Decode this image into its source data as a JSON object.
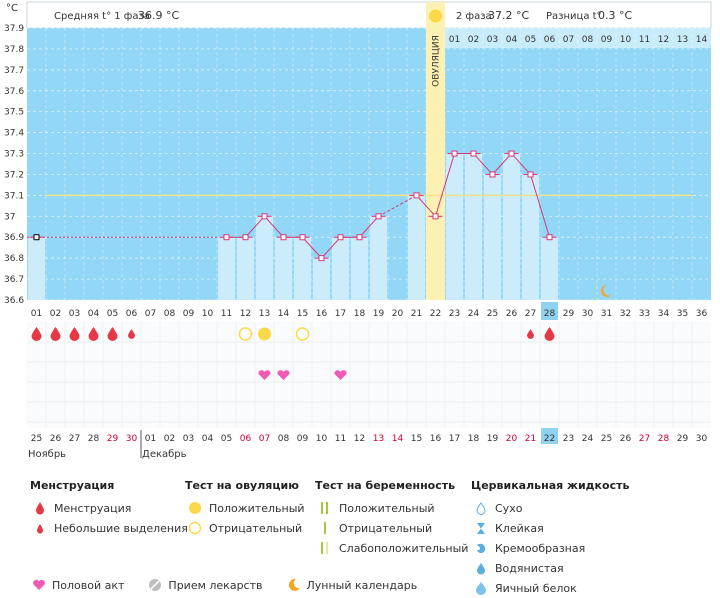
{
  "chart_data": {
    "type": "line",
    "unit_label": "°C",
    "ylim": [
      36.6,
      37.9
    ],
    "yticks": [
      "37.9",
      "37.8",
      "37.7",
      "37.6",
      "37.5",
      "37.4",
      "37.3",
      "37.2",
      "37.1",
      "37",
      "36.9",
      "36.8",
      "36.7",
      "36.6"
    ],
    "cycle_days": [
      "01",
      "02",
      "03",
      "04",
      "05",
      "06",
      "07",
      "08",
      "09",
      "10",
      "11",
      "12",
      "13",
      "14",
      "15",
      "16",
      "17",
      "18",
      "19",
      "20",
      "21",
      "22",
      "23",
      "24",
      "25",
      "26",
      "27",
      "28",
      "29",
      "30",
      "31",
      "32",
      "33",
      "34",
      "35",
      "36"
    ],
    "phase2_days": [
      "01",
      "02",
      "03",
      "04",
      "05",
      "06",
      "07",
      "08",
      "09",
      "10",
      "11",
      "12",
      "13",
      "14"
    ],
    "dates": [
      "25",
      "26",
      "27",
      "28",
      "29",
      "30",
      "01",
      "02",
      "03",
      "04",
      "05",
      "06",
      "07",
      "08",
      "09",
      "10",
      "11",
      "12",
      "13",
      "14",
      "15",
      "16",
      "17",
      "18",
      "19",
      "20",
      "21",
      "22",
      "23",
      "24",
      "25",
      "26",
      "27",
      "28",
      "29",
      "30"
    ],
    "red_date_indices": [
      4,
      5,
      11,
      12,
      18,
      19,
      25,
      26,
      32,
      33
    ],
    "months": [
      {
        "label": "Ноябрь",
        "start": 0
      },
      {
        "label": "Декабрь",
        "start": 6
      }
    ],
    "temperatures": [
      36.9,
      null,
      null,
      null,
      null,
      null,
      null,
      null,
      null,
      null,
      36.9,
      36.9,
      37.0,
      36.9,
      36.9,
      36.8,
      36.9,
      36.9,
      37.0,
      null,
      37.1,
      37.0,
      37.3,
      37.3,
      37.2,
      37.3,
      37.2,
      36.9
    ],
    "dashed_segments": [
      [
        0,
        10
      ],
      [
        18,
        20
      ]
    ],
    "baseline_value": 36.9,
    "coverline_value": 37.1,
    "ovulation_day_index": 21,
    "ovulation_label": "ОВУЛЯЦИЯ",
    "today_index": 27,
    "header": {
      "phase1_label": "Средняя t° 1 фаза",
      "phase1_value": "36.9 °C",
      "phase2_label": "2 фаза",
      "phase2_value": "37.2 °C",
      "diff_label": "Разница t°",
      "diff_value": "0.3 °C"
    },
    "markers": {
      "menstruation": [
        {
          "i": 0,
          "big": true
        },
        {
          "i": 1,
          "big": true
        },
        {
          "i": 2,
          "big": true
        },
        {
          "i": 3,
          "big": true
        },
        {
          "i": 4,
          "big": true
        },
        {
          "i": 5,
          "big": false
        },
        {
          "i": 26,
          "big": false
        },
        {
          "i": 27,
          "big": true
        }
      ],
      "ovulation_tests": [
        {
          "i": 11,
          "positive": false
        },
        {
          "i": 12,
          "positive": true
        },
        {
          "i": 14,
          "positive": false
        }
      ],
      "intercourse": [
        12,
        13,
        16
      ],
      "moon": [
        30
      ]
    }
  },
  "legend": {
    "menstruation": {
      "title": "Менструация",
      "items": [
        "Менструация",
        "Небольшие выделения"
      ]
    },
    "ovulation_test": {
      "title": "Тест на овуляцию",
      "items": [
        "Положительный",
        "Отрицательный"
      ]
    },
    "pregnancy_test": {
      "title": "Тест на беременность",
      "items": [
        "Положительный",
        "Отрицательный",
        "Слабоположительный"
      ]
    },
    "cervical": {
      "title": "Цервикальная жидкость",
      "items": [
        "Сухо",
        "Клейкая",
        "Кремообразная",
        "Водянистая",
        "Яичный белок"
      ]
    },
    "bottom": [
      "Половой акт",
      "Прием лекарств",
      "Лунный календарь"
    ]
  },
  "colors": {
    "plot_bg": "#92d7f5",
    "bar": "#ccecfb",
    "line": "#d8377a",
    "ovulation": "#fdf0b3",
    "today": "#8fd3f0",
    "red_text": "#cc0033"
  }
}
